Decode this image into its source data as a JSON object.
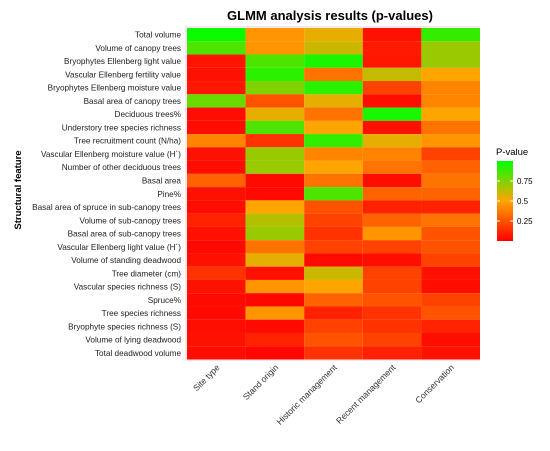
{
  "chart_data": {
    "type": "heatmap",
    "title": "GLMM analysis results (p-values)",
    "ylabel": "Structural feature",
    "xlabel": "",
    "columns": [
      "Site type",
      "Stand origin",
      "Historic management",
      "Recent management",
      "Conservation"
    ],
    "rows": [
      "Total volume",
      "Volume of canopy trees",
      "Bryophytes Ellenberg light value",
      "Vascular Ellenberg fertility value",
      "Bryophytes Ellenberg moisture value",
      "Basal area of canopy trees",
      "Deciduous trees%",
      "Understory tree species richness",
      "Tree recruitment count (N/ha)",
      "Vascular Ellenberg moisture value (H´)",
      "Number of other deciduous trees",
      "Basal area",
      "Pine%",
      "Basal area of spruce in sub-canopy trees",
      "Volume of sub-canopy trees",
      "Basal area of sub-canopy trees",
      "Vascular Ellenberg light value (H´)",
      "Volume of standing deadwood",
      "Tree diameter (cm)",
      "Vascular species richness (S)",
      "Spruce%",
      "Tree species richness",
      "Bryophyte species richness (S)",
      "Volume of lying deadwood",
      "Total deadwood volume"
    ],
    "values": [
      [
        0.98,
        0.45,
        0.55,
        0.05,
        0.9
      ],
      [
        0.85,
        0.45,
        0.6,
        0.08,
        0.7
      ],
      [
        0.06,
        0.85,
        0.95,
        0.07,
        0.7
      ],
      [
        0.05,
        0.92,
        0.35,
        0.62,
        0.5
      ],
      [
        0.07,
        0.75,
        0.92,
        0.2,
        0.4
      ],
      [
        0.8,
        0.25,
        0.55,
        0.04,
        0.4
      ],
      [
        0.04,
        0.55,
        0.35,
        0.95,
        0.5
      ],
      [
        0.04,
        0.85,
        0.5,
        0.05,
        0.35
      ],
      [
        0.4,
        0.15,
        0.9,
        0.55,
        0.45
      ],
      [
        0.05,
        0.7,
        0.4,
        0.4,
        0.2
      ],
      [
        0.04,
        0.7,
        0.5,
        0.35,
        0.3
      ],
      [
        0.3,
        0.03,
        0.35,
        0.04,
        0.35
      ],
      [
        0.05,
        0.03,
        0.85,
        0.3,
        0.3
      ],
      [
        0.04,
        0.5,
        0.25,
        0.1,
        0.1
      ],
      [
        0.1,
        0.65,
        0.2,
        0.3,
        0.35
      ],
      [
        0.05,
        0.7,
        0.15,
        0.45,
        0.25
      ],
      [
        0.03,
        0.35,
        0.2,
        0.2,
        0.25
      ],
      [
        0.05,
        0.55,
        0.03,
        0.04,
        0.2
      ],
      [
        0.15,
        0.05,
        0.6,
        0.2,
        0.05
      ],
      [
        0.05,
        0.45,
        0.5,
        0.2,
        0.04
      ],
      [
        0.03,
        0.02,
        0.3,
        0.25,
        0.2
      ],
      [
        0.03,
        0.45,
        0.1,
        0.15,
        0.25
      ],
      [
        0.04,
        0.03,
        0.2,
        0.15,
        0.1
      ],
      [
        0.05,
        0.1,
        0.25,
        0.2,
        0.04
      ],
      [
        0.04,
        0.02,
        0.15,
        0.1,
        0.05
      ]
    ],
    "value_range": [
      0,
      1
    ],
    "colorscale": [
      "#ff0000",
      "#ffa500",
      "#00ff00"
    ],
    "legend": {
      "title": "P-value",
      "ticks": [
        0.25,
        0.5,
        0.75
      ],
      "placement": "right"
    },
    "grid": false
  }
}
